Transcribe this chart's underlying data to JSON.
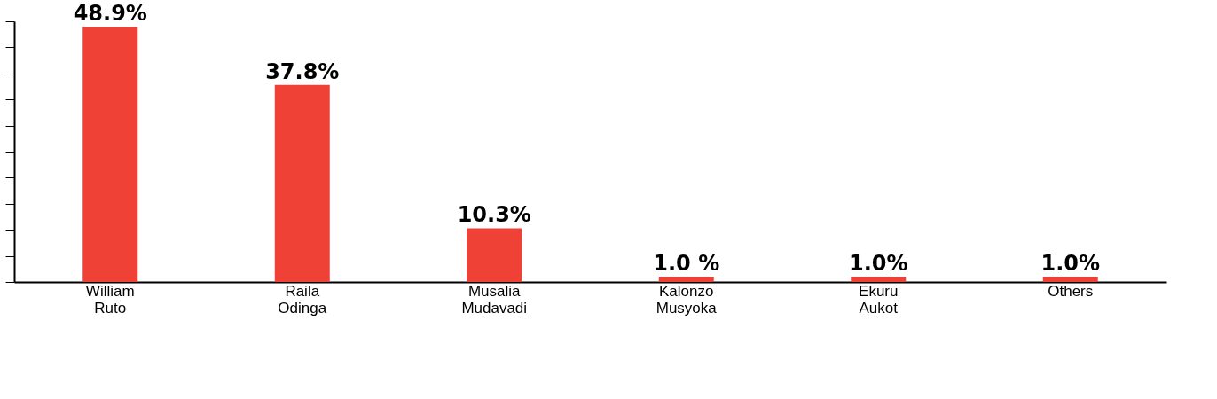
{
  "chart_data": {
    "type": "bar",
    "categories": [
      "William Ruto",
      "Raila Odinga",
      "Musalia Mudavadi",
      "Kalonzo Musyoka",
      "Ekuru Aukot",
      "Others"
    ],
    "values": [
      48.9,
      37.8,
      10.3,
      1.0,
      1.0,
      1.0
    ],
    "value_labels": [
      "48.9%",
      "37.8%",
      "10.3%",
      "1.0 %",
      "1.0%",
      "1.0%"
    ],
    "color": "#ef4136",
    "tick_labels": "x"
  }
}
